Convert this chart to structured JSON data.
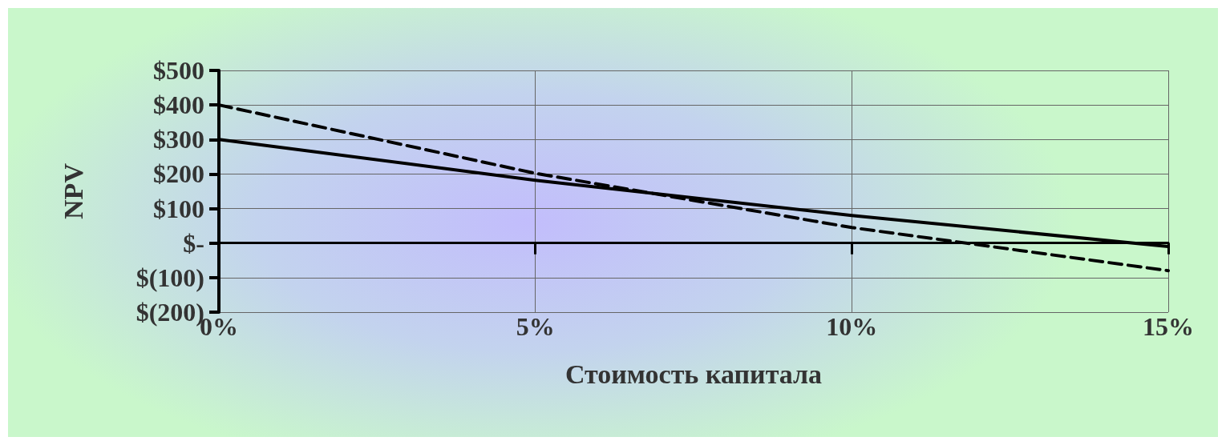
{
  "chart_data": {
    "type": "line",
    "xlabel": "Стоимость капитала",
    "ylabel": "NPV",
    "x": [
      0,
      5,
      10,
      15
    ],
    "series": [
      {
        "color": "#000000",
        "line_style": "solid",
        "values": [
          300,
          182,
          80,
          -10
        ]
      },
      {
        "color": "#000000",
        "line_style": "dashed",
        "values": [
          400,
          202,
          45,
          -80
        ]
      }
    ],
    "xlim": [
      0,
      15
    ],
    "xticks": [
      {
        "value": 0,
        "label": "0%"
      },
      {
        "value": 5,
        "label": "5%"
      },
      {
        "value": 10,
        "label": "10%"
      },
      {
        "value": 15,
        "label": "15%"
      }
    ],
    "ylim": [
      -200,
      500
    ],
    "yticks": [
      {
        "value": -200,
        "label": "$(200)"
      },
      {
        "value": -100,
        "label": "$(100)"
      },
      {
        "value": 0,
        "label": "$-"
      },
      {
        "value": 100,
        "label": "$100"
      },
      {
        "value": 200,
        "label": "$200"
      },
      {
        "value": 300,
        "label": "$300"
      },
      {
        "value": 400,
        "label": "$400"
      },
      {
        "value": 500,
        "label": "$500"
      }
    ],
    "grid": true,
    "marker": "none"
  }
}
